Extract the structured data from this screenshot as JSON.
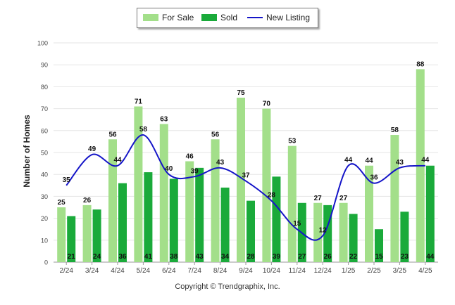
{
  "legend": {
    "items": [
      {
        "label": "For Sale",
        "color": "#a3df8a"
      },
      {
        "label": "Sold",
        "color": "#1aaa3a"
      },
      {
        "label": "New Listing",
        "color": "#1515c8"
      }
    ]
  },
  "copyright": "Copyright © Trendgraphix, Inc.",
  "chart_data": {
    "type": "bar",
    "categories": [
      "2/24",
      "3/24",
      "4/24",
      "5/24",
      "6/24",
      "7/24",
      "8/24",
      "9/24",
      "10/24",
      "11/24",
      "12/24",
      "1/25",
      "2/25",
      "3/25",
      "4/25"
    ],
    "series": [
      {
        "name": "For Sale",
        "type": "bar",
        "color": "#a3df8a",
        "values": [
          25,
          26,
          56,
          71,
          63,
          46,
          56,
          75,
          70,
          53,
          27,
          27,
          44,
          58,
          88
        ]
      },
      {
        "name": "Sold",
        "type": "bar",
        "color": "#1aaa3a",
        "values": [
          21,
          24,
          36,
          41,
          38,
          43,
          34,
          28,
          39,
          27,
          26,
          22,
          15,
          23,
          44
        ]
      },
      {
        "name": "New Listing",
        "type": "line",
        "color": "#1515c8",
        "values": [
          35,
          49,
          44,
          58,
          40,
          39,
          43,
          37,
          28,
          15,
          12,
          44,
          36,
          43,
          44
        ]
      }
    ],
    "ylabel": "Number of Homes",
    "xlabel": "",
    "ylim": [
      0,
      100
    ],
    "yticks": [
      0,
      10,
      20,
      30,
      40,
      50,
      60,
      70,
      80,
      90,
      100
    ],
    "grid": true,
    "legend_position": "top"
  }
}
